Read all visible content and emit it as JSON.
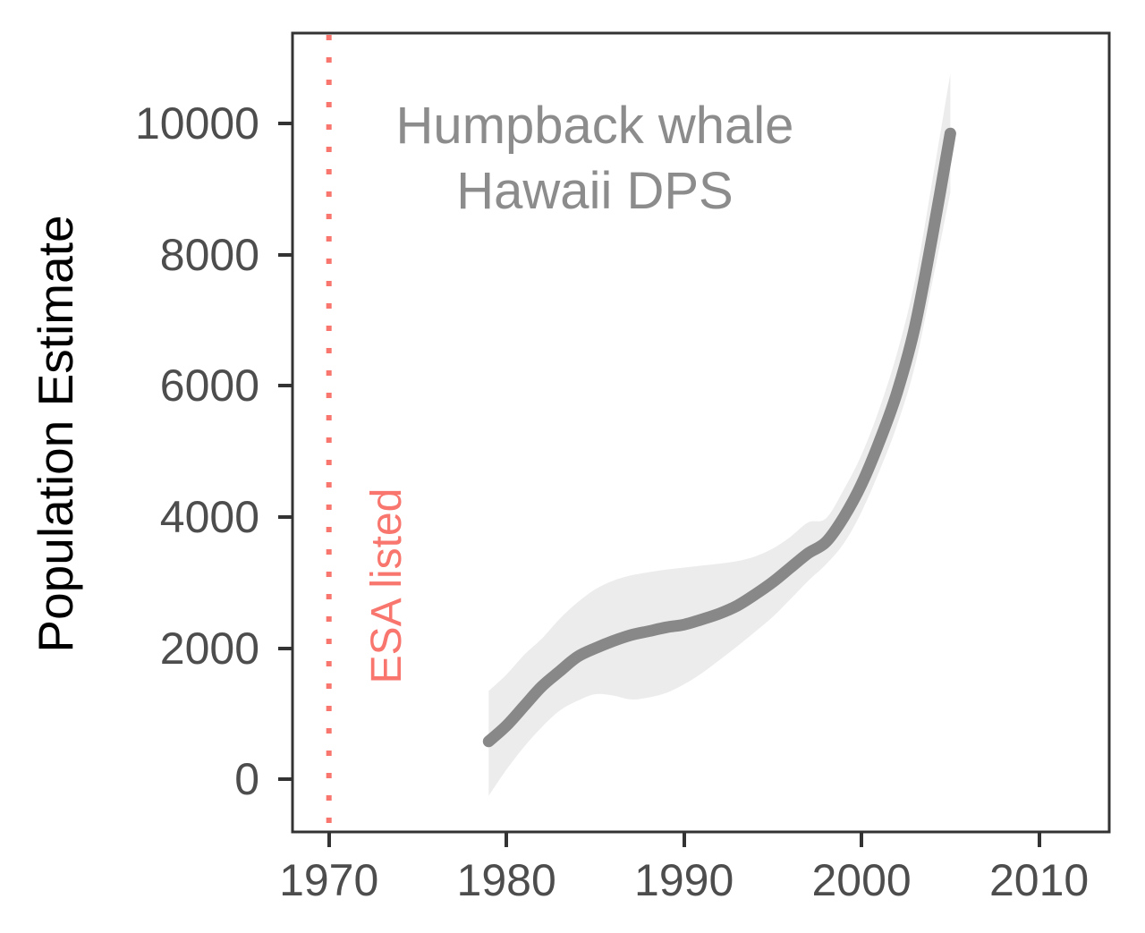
{
  "figure": {
    "background": "#FFFFFF"
  },
  "colors": {
    "panel_border": "#333333",
    "tick_mark": "#333333",
    "tick_label_text": "#4D4D4D",
    "axis_title_text": "#000000",
    "annotation_text": "#8C8C8C",
    "trend_line": "#888888",
    "confidence_band": "#ECECEC",
    "esa_accent": "#F8766D"
  },
  "annotations": {
    "title_line1": "Humpback whale",
    "title_line2": "Hawaii DPS",
    "esa_label": "ESA listed"
  },
  "y_axis": {
    "label": "Population Estimate",
    "ticks": [
      0,
      2000,
      4000,
      6000,
      8000,
      10000
    ],
    "tick_labels": [
      "0",
      "2000",
      "4000",
      "6000",
      "8000",
      "10000"
    ]
  },
  "x_axis": {
    "label": "",
    "ticks": [
      1970,
      1980,
      1990,
      2000,
      2010
    ],
    "tick_labels": [
      "1970",
      "1980",
      "1990",
      "2000",
      "2010"
    ]
  },
  "chart_data": {
    "type": "line",
    "title": "Humpback whale Hawaii DPS",
    "xlabel": "",
    "ylabel": "Population Estimate",
    "xlim": [
      1968,
      2014
    ],
    "ylim": [
      -800,
      11380
    ],
    "grid": false,
    "legend": false,
    "x": [
      1979,
      1980,
      1981,
      1982,
      1983,
      1984,
      1985,
      1986,
      1987,
      1988,
      1989,
      1990,
      1991,
      1992,
      1993,
      1994,
      1995,
      1996,
      1997,
      1998,
      1999,
      2000,
      2001,
      2002,
      2003,
      2004,
      2005
    ],
    "series": [
      {
        "name": "population_estimate",
        "values": [
          580,
          820,
          1120,
          1420,
          1650,
          1870,
          2000,
          2110,
          2200,
          2260,
          2320,
          2360,
          2440,
          2530,
          2650,
          2820,
          3010,
          3230,
          3450,
          3620,
          4000,
          4500,
          5150,
          5900,
          6900,
          8300,
          9850
        ]
      }
    ],
    "band": {
      "name": "confidence_interval",
      "lower": [
        -250,
        150,
        500,
        800,
        1050,
        1200,
        1300,
        1280,
        1220,
        1250,
        1320,
        1450,
        1620,
        1820,
        2030,
        2250,
        2480,
        2750,
        3030,
        3280,
        3600,
        4080,
        4700,
        5400,
        6300,
        7600,
        8950
      ],
      "upper": [
        1350,
        1600,
        1900,
        2150,
        2450,
        2700,
        2900,
        3030,
        3110,
        3160,
        3200,
        3230,
        3260,
        3290,
        3330,
        3400,
        3520,
        3700,
        3920,
        3980,
        4420,
        4950,
        5650,
        6500,
        7600,
        9150,
        10760
      ]
    },
    "vline": {
      "x": 1970,
      "label": "ESA listed",
      "style": "dotted",
      "color": "#F8766D"
    }
  }
}
